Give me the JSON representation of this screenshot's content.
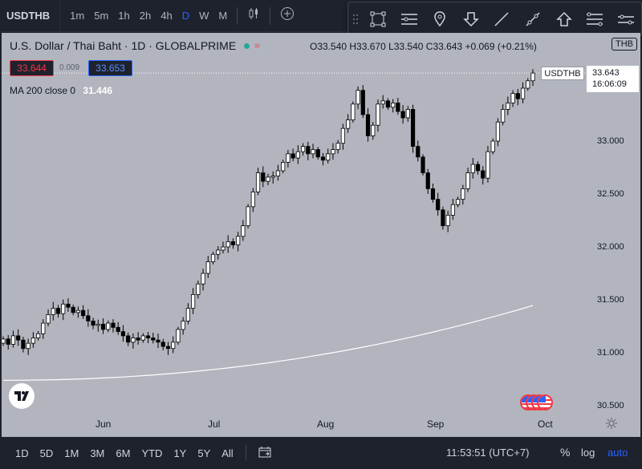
{
  "toolbar": {
    "symbol": "USDTHB",
    "intervals": [
      "1m",
      "5m",
      "1h",
      "2h",
      "4h",
      "D",
      "W",
      "M"
    ],
    "active_interval": "D"
  },
  "legend": {
    "title": "U.S. Dollar / Thai Baht · 1D · GLOBALPRIME",
    "badge": "≈",
    "ohlc": "O33.540 H33.670 L33.540 C33.643 +0.069 (+0.21%)",
    "currency": "THB"
  },
  "trade": {
    "sell": "33.644",
    "spread": "0.009",
    "buy": "33.653"
  },
  "indicator": {
    "label": "MA 200 close 0",
    "value": "31.446"
  },
  "price_axis": {
    "labels": [
      "33.000",
      "32.500",
      "32.000",
      "31.500",
      "31.000",
      "30.500"
    ],
    "symbol_tag": "USDTHB",
    "last_price": "33.643",
    "countdown": "16:06:09"
  },
  "time_axis": {
    "labels": [
      "Jun",
      "Jul",
      "Aug",
      "Sep",
      "Oct"
    ]
  },
  "bottombar": {
    "ranges": [
      "1D",
      "5D",
      "1M",
      "3M",
      "6M",
      "YTD",
      "1Y",
      "5Y",
      "All"
    ],
    "time": "11:53:51 (UTC+7)",
    "percent": "%",
    "log": "log",
    "auto": "auto"
  },
  "colors": {
    "pane_bg": "#b2b5be",
    "candle_up": "#ffffff",
    "candle_down": "#000000",
    "ma_line": "#ffffff",
    "accent": "#2962ff",
    "sell": "#f23645"
  },
  "chart_data": {
    "type": "candlestick",
    "ylim": [
      30.45,
      33.9
    ],
    "y_ticks": [
      33.0,
      32.5,
      32.0,
      31.5,
      31.0,
      30.5
    ],
    "closes": [
      31.13,
      31.08,
      31.16,
      31.12,
      31.04,
      31.09,
      31.14,
      31.18,
      31.28,
      31.36,
      31.42,
      31.37,
      31.46,
      31.43,
      31.38,
      31.4,
      31.35,
      31.3,
      31.26,
      31.27,
      31.22,
      31.28,
      31.24,
      31.2,
      31.16,
      31.1,
      31.14,
      31.12,
      31.16,
      31.14,
      31.12,
      31.1,
      31.06,
      31.04,
      31.1,
      31.22,
      31.3,
      31.42,
      31.55,
      31.65,
      31.75,
      31.86,
      31.93,
      31.97,
      32.0,
      32.05,
      32.02,
      32.1,
      32.2,
      32.38,
      32.52,
      32.7,
      32.62,
      32.66,
      32.67,
      32.72,
      32.8,
      32.88,
      32.84,
      32.9,
      32.95,
      32.88,
      32.92,
      32.85,
      32.82,
      32.88,
      32.92,
      32.98,
      33.12,
      33.2,
      33.35,
      33.48,
      33.25,
      33.05,
      33.15,
      33.35,
      33.38,
      33.32,
      33.36,
      33.28,
      33.22,
      33.3,
      32.95,
      32.85,
      32.7,
      32.55,
      32.45,
      32.35,
      32.2,
      32.3,
      32.4,
      32.45,
      32.55,
      32.7,
      32.78,
      32.72,
      32.65,
      32.9,
      33.0,
      33.18,
      33.3,
      33.36,
      33.45,
      33.4,
      33.5,
      33.57,
      33.643
    ],
    "ma200": {
      "name": "MA 200 close 0",
      "start": 30.74,
      "end": 31.446
    }
  }
}
